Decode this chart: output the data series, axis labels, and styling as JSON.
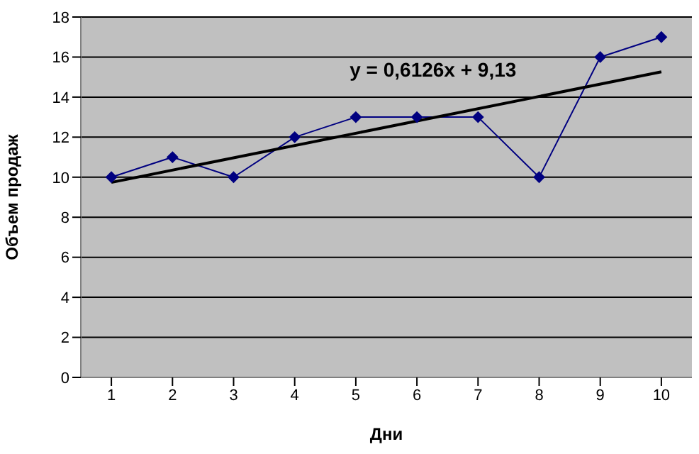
{
  "chart_data": {
    "type": "line",
    "xlabel": "Дни",
    "ylabel": "Объем продаж",
    "x": [
      1,
      2,
      3,
      4,
      5,
      6,
      7,
      8,
      9,
      10
    ],
    "xlim": [
      0.5,
      10.5
    ],
    "xticks": [
      1,
      2,
      3,
      4,
      5,
      6,
      7,
      8,
      9,
      10
    ],
    "ylim": [
      0,
      18
    ],
    "yticks": [
      0,
      2,
      4,
      6,
      8,
      10,
      12,
      14,
      16,
      18
    ],
    "grid": "y",
    "marker": "diamond",
    "line_style": "solid",
    "series": [
      {
        "color": "#000080",
        "values": [
          10,
          11,
          10,
          12,
          13,
          13,
          13,
          10,
          16,
          17
        ]
      },
      {
        "type": "line",
        "color": "#000000",
        "x": [
          1,
          10
        ],
        "values": [
          9.74,
          15.26
        ],
        "marker": "none"
      }
    ],
    "annotations": [
      "y = 0,6126x + 9,13"
    ]
  }
}
